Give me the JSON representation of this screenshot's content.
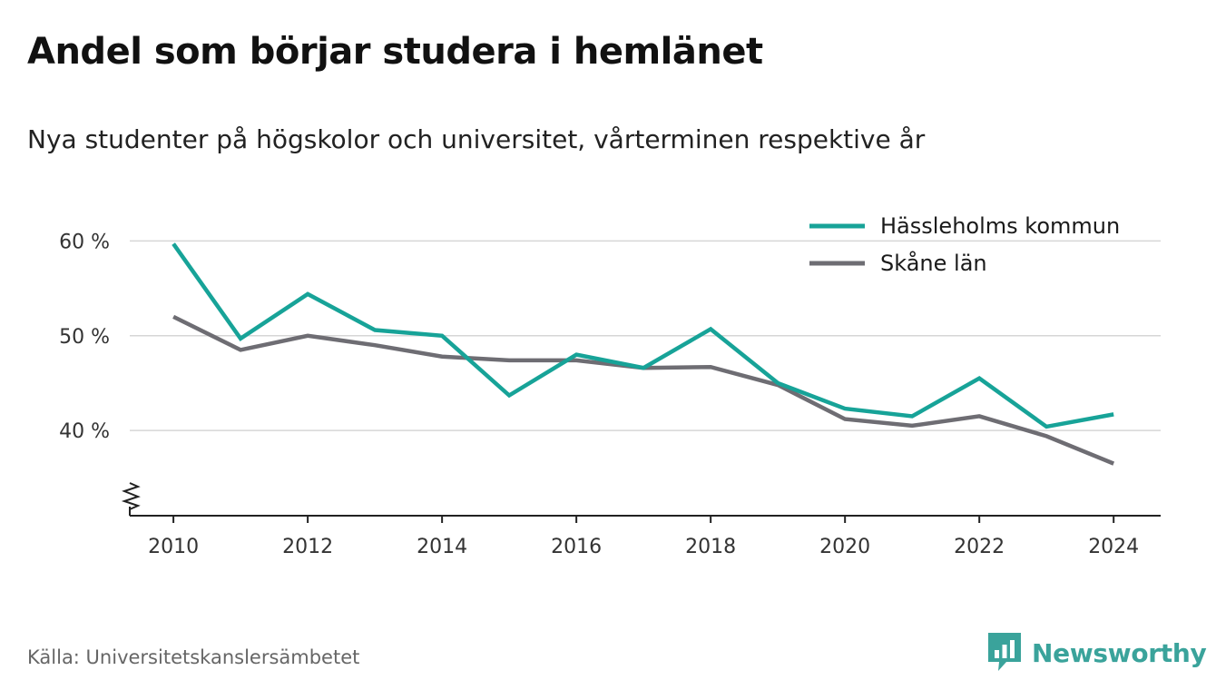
{
  "title": "Andel som börjar studera i hemlänet",
  "subtitle": "Nya studenter på högskolor och universitet, vårterminen respektive år",
  "source": "Källa: Universitetskanslersämbetet",
  "brand": {
    "name": "Newsworthy",
    "icon": "newsworthy-logo-icon",
    "color": "#3aa39b"
  },
  "chart_data": {
    "type": "line",
    "x": [
      2010,
      2011,
      2012,
      2013,
      2014,
      2015,
      2016,
      2017,
      2018,
      2019,
      2020,
      2021,
      2022,
      2023,
      2024
    ],
    "x_tick_labels": [
      "2010",
      "2012",
      "2014",
      "2016",
      "2018",
      "2020",
      "2022",
      "2024"
    ],
    "y_tick_labels": [
      "40 %",
      "50 %",
      "60 %"
    ],
    "y_ticks": [
      40,
      50,
      60
    ],
    "ylim": [
      31,
      61
    ],
    "xlim": [
      2009.35,
      2024.7
    ],
    "grid": true,
    "legend_placement": "top-right",
    "axis_break": true,
    "series": [
      {
        "name": "Hässleholms kommun",
        "color": "#17a398",
        "values": [
          59.7,
          49.7,
          54.4,
          50.6,
          50.0,
          43.7,
          48.0,
          46.6,
          50.7,
          45.0,
          42.3,
          41.5,
          45.5,
          40.4,
          41.7
        ]
      },
      {
        "name": "Skåne län",
        "color": "#6e6d73",
        "values": [
          52.0,
          48.5,
          50.0,
          49.0,
          47.8,
          47.4,
          47.4,
          46.6,
          46.7,
          44.8,
          41.2,
          40.5,
          41.5,
          39.4,
          36.5
        ]
      }
    ]
  }
}
